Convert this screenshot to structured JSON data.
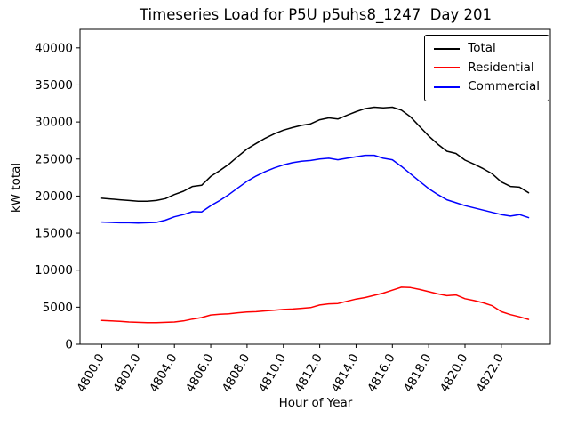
{
  "chart_data": {
    "type": "line",
    "title": "Timeseries Load for P5U p5uhs8_1247  Day 201",
    "xlabel": "Hour of Year",
    "ylabel": "kW total",
    "grid": false,
    "legend_position": "upper right",
    "xlim": [
      4798.8,
      4824.7
    ],
    "ylim": [
      0,
      42500
    ],
    "xticks": {
      "values": [
        4800,
        4802,
        4804,
        4806,
        4808,
        4810,
        4812,
        4814,
        4816,
        4818,
        4820,
        4822
      ],
      "labels": [
        "4800.0",
        "4802.0",
        "4804.0",
        "4806.0",
        "4808.0",
        "4810.0",
        "4812.0",
        "4814.0",
        "4816.0",
        "4818.0",
        "4820.0",
        "4822.0"
      ]
    },
    "yticks": {
      "values": [
        0,
        5000,
        10000,
        15000,
        20000,
        25000,
        30000,
        35000,
        40000
      ],
      "labels": [
        "0",
        "5000",
        "10000",
        "15000",
        "20000",
        "25000",
        "30000",
        "35000",
        "40000"
      ]
    },
    "x": [
      4800.0,
      4800.5,
      4801.0,
      4801.5,
      4802.0,
      4802.5,
      4803.0,
      4803.5,
      4804.0,
      4804.5,
      4805.0,
      4805.5,
      4806.0,
      4806.5,
      4807.0,
      4807.5,
      4808.0,
      4808.5,
      4809.0,
      4809.5,
      4810.0,
      4810.5,
      4811.0,
      4811.5,
      4812.0,
      4812.5,
      4813.0,
      4813.5,
      4814.0,
      4814.5,
      4815.0,
      4815.5,
      4816.0,
      4816.5,
      4817.0,
      4817.5,
      4818.0,
      4818.5,
      4819.0,
      4819.5,
      4820.0,
      4820.5,
      4821.0,
      4821.5,
      4822.0,
      4822.5,
      4823.0,
      4823.5
    ],
    "series": [
      {
        "name": "Total",
        "color": "#000000",
        "values": [
          19700,
          19600,
          19500,
          19400,
          19300,
          19300,
          19400,
          19650,
          20200,
          20650,
          21300,
          21450,
          22650,
          23450,
          24300,
          25350,
          26350,
          27100,
          27800,
          28400,
          28900,
          29250,
          29550,
          29750,
          30300,
          30550,
          30400,
          30900,
          31400,
          31800,
          32000,
          31900,
          32000,
          31600,
          30700,
          29400,
          28100,
          27000,
          26050,
          25750,
          24850,
          24300,
          23700,
          23000,
          21900,
          21300,
          21200,
          20450
        ]
      },
      {
        "name": "Residential",
        "color": "#ff0000",
        "values": [
          3200,
          3150,
          3100,
          3000,
          2950,
          2900,
          2900,
          2950,
          3000,
          3150,
          3400,
          3600,
          3950,
          4050,
          4100,
          4250,
          4350,
          4400,
          4500,
          4600,
          4700,
          4750,
          4850,
          4950,
          5300,
          5450,
          5500,
          5800,
          6100,
          6300,
          6600,
          6900,
          7300,
          7700,
          7650,
          7400,
          7100,
          6800,
          6550,
          6650,
          6150,
          5900,
          5600,
          5200,
          4400,
          4000,
          3700,
          3350
        ]
      },
      {
        "name": "Commercial",
        "color": "#0000ff",
        "values": [
          16500,
          16450,
          16400,
          16400,
          16350,
          16400,
          16450,
          16750,
          17200,
          17500,
          17900,
          17850,
          18700,
          19400,
          20200,
          21100,
          22000,
          22700,
          23300,
          23800,
          24200,
          24500,
          24700,
          24800,
          25000,
          25100,
          24900,
          25100,
          25300,
          25500,
          25500,
          25100,
          24900,
          24000,
          23000,
          22000,
          21000,
          20200,
          19500,
          19100,
          18700,
          18400,
          18100,
          17800,
          17500,
          17300,
          17500,
          17100
        ]
      }
    ]
  }
}
